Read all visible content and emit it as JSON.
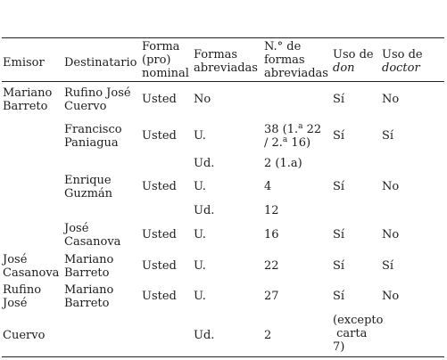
{
  "headers": {
    "emisor": "Emisor",
    "destinatario": "Destinatario",
    "forma_1": "Forma",
    "forma_2": "(pro)",
    "forma_3": "nominal",
    "formas_1": "Formas",
    "formas_2": "abreviadas",
    "num_1": "N.° de",
    "num_2": "formas",
    "num_3": "abreviadas",
    "don_1": "Uso de",
    "don_2": "don",
    "doctor_1": "Uso de",
    "doctor_2": "doctor"
  },
  "rows": [
    {
      "emisor_1": "Mariano",
      "emisor_2": "Barreto",
      "dest_1": "Rufino José",
      "dest_2": "Cuervo",
      "forma": "Usted",
      "abrev": "No",
      "don": "Sí",
      "doctor": "No"
    },
    {
      "dest_1": "Francisco",
      "dest_2": "Paniagua",
      "forma": "Usted",
      "abrev": "U.",
      "num_a": "38 (1.",
      "num_a_sup": "a",
      "num_b": " 22",
      "num_c": "/ 2.",
      "num_c_sup": "a",
      "num_d": " 16)",
      "don": "Sí",
      "doctor": "Sí"
    },
    {
      "abrev": "Ud.",
      "num": "2 (1.a)"
    },
    {
      "dest_1": "Enrique",
      "dest_2": "Guzmán",
      "forma": "Usted",
      "abrev": "U.",
      "num": "4",
      "don": "Sí",
      "doctor": "No"
    },
    {
      "abrev": "Ud.",
      "num": "12"
    },
    {
      "dest_1": "José",
      "dest_2": "Casanova",
      "forma": "Usted",
      "abrev": "U.",
      "num": "16",
      "don": "Sí",
      "doctor": "No"
    },
    {
      "emisor_1": "José",
      "emisor_2": "Casanova",
      "dest_1": "Mariano",
      "dest_2": "Barreto",
      "forma": "Usted",
      "abrev": "U.",
      "num": "22",
      "don": "Sí",
      "doctor": "Sí"
    },
    {
      "emisor_1": "Rufino",
      "emisor_2": "José",
      "dest_1": "Mariano",
      "dest_2": "Barreto",
      "forma": "Usted",
      "abrev": "U.",
      "num": "27",
      "don": "Sí",
      "doctor": "No"
    },
    {
      "emisor_1": "Cuervo",
      "abrev": "Ud.",
      "num": "2",
      "don_1": "(excepto",
      "don_2": " carta",
      "don_3": "7)"
    }
  ]
}
